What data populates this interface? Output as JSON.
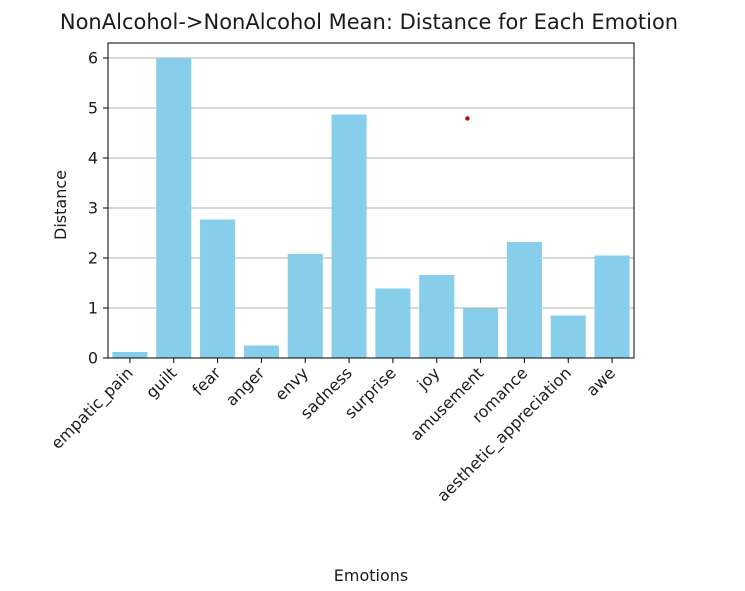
{
  "chart_data": {
    "type": "bar",
    "title": "NonAlcohol->NonAlcohol Mean: Distance for Each Emotion",
    "xlabel": "Emotions",
    "ylabel": "Distance",
    "categories": [
      "empatic_pain",
      "guilt",
      "fear",
      "anger",
      "envy",
      "sadness",
      "surprise",
      "joy",
      "amusement",
      "romance",
      "aesthetic_appreciation",
      "awe"
    ],
    "values": [
      0.12,
      6.0,
      2.77,
      0.25,
      2.08,
      4.87,
      1.39,
      1.66,
      0.99,
      2.32,
      0.85,
      2.05
    ],
    "yticks": [
      0,
      1,
      2,
      3,
      4,
      5,
      6
    ],
    "ylim": [
      0,
      6.3
    ],
    "grid": "y",
    "bar_color": "#87ceeb",
    "annotations": [
      {
        "type": "point",
        "x": 7.7,
        "y": 4.79,
        "color": "#cc0000"
      }
    ]
  }
}
